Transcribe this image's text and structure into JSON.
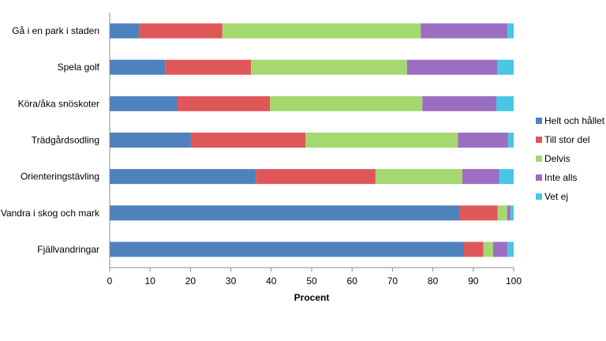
{
  "chart_data": {
    "type": "bar",
    "orientation": "horizontal",
    "stacked": true,
    "title": "",
    "xlabel": "Procent",
    "ylabel": "",
    "xlim": [
      0,
      100
    ],
    "x_ticks": [
      0,
      10,
      20,
      30,
      40,
      50,
      60,
      70,
      80,
      90,
      100
    ],
    "grid": false,
    "legend_position": "right",
    "categories": [
      "Gå i en park i staden",
      "Spela golf",
      "Köra/åka snöskoter",
      "Trädgårdsodling",
      "Orienteringstävling",
      "Vandra i skog och mark",
      "Fjällvandringar"
    ],
    "series": [
      {
        "name": "Helt och hållet",
        "color": "#4f81bd",
        "values": [
          7.3,
          13.7,
          16.7,
          20.1,
          36.2,
          86.7,
          87.7
        ]
      },
      {
        "name": "Till stor del",
        "color": "#e0575a",
        "values": [
          20.6,
          21.3,
          23.0,
          28.4,
          29.6,
          9.3,
          4.8
        ]
      },
      {
        "name": "Delvis",
        "color": "#a5d86e",
        "values": [
          49.1,
          38.6,
          37.7,
          37.7,
          21.5,
          2.4,
          2.4
        ]
      },
      {
        "name": "Inte alls",
        "color": "#9b6ec2",
        "values": [
          21.5,
          22.3,
          18.3,
          12.4,
          9.1,
          0.8,
          3.6
        ]
      },
      {
        "name": "Vet ej",
        "color": "#48c6e4",
        "values": [
          1.5,
          4.1,
          4.3,
          1.4,
          3.6,
          0.8,
          1.5
        ]
      }
    ]
  }
}
